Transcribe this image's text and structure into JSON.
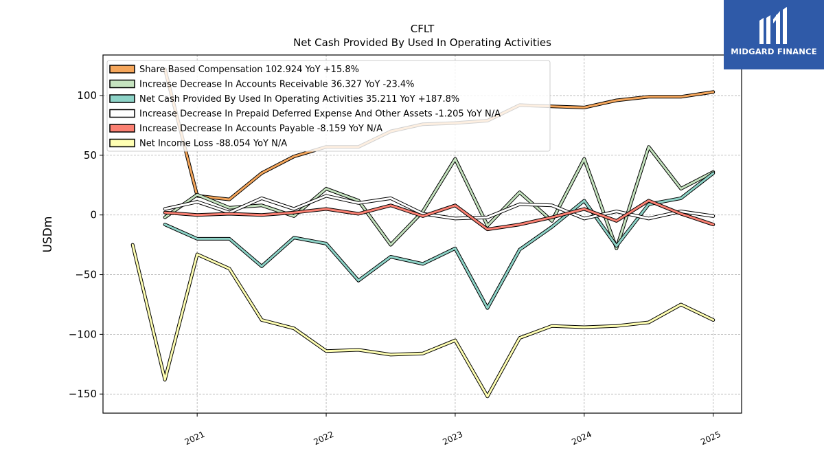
{
  "brand": {
    "name": "MIDGARD FINANCE",
    "logo_icon": "midgard-logo-icon",
    "background": "#2f5aa8"
  },
  "chart_data": {
    "type": "line",
    "title": "CFLT",
    "subtitle": "Net Cash Provided By Used In Operating Activities",
    "xlabel": "",
    "ylabel": "USDm",
    "xlim": [
      2020.27,
      2025.22
    ],
    "ylim": [
      -166,
      134
    ],
    "x_ticks": [
      2021,
      2022,
      2023,
      2024,
      2025
    ],
    "y_ticks": [
      100,
      50,
      0,
      -50,
      -100,
      -150
    ],
    "y_tick_labels": [
      "100",
      "50",
      "0",
      "−50",
      "−100",
      "−150"
    ],
    "grid": true,
    "legend_position": "top-left",
    "x": [
      2020.5,
      2020.75,
      2021.0,
      2021.25,
      2021.5,
      2021.75,
      2022.0,
      2022.25,
      2022.5,
      2022.75,
      2023.0,
      2023.25,
      2023.5,
      2023.75,
      2024.0,
      2024.25,
      2024.5,
      2024.75,
      2025.0
    ],
    "series": [
      {
        "name": "Share Based Compensation",
        "legend_label": "Share Based Compensation  102.924 YoY +15.8%",
        "color": "#f5a65b",
        "values": [
          null,
          122,
          16,
          13,
          35,
          49,
          57,
          57,
          70,
          76,
          77,
          79,
          92,
          91,
          90,
          96,
          99,
          99,
          103
        ]
      },
      {
        "name": "Increase Decrease In Accounts Receivable",
        "legend_label": "Increase Decrease In Accounts Receivable  36.327 YoY -23.4%",
        "color": "#c5e3bf",
        "values": [
          null,
          -2,
          17,
          6,
          8,
          -1,
          22,
          12,
          -25,
          3,
          47,
          -9,
          19,
          -5,
          47,
          -28,
          57,
          22,
          36
        ]
      },
      {
        "name": "Net Cash Provided By Used In Operating Activities",
        "legend_label": "Net Cash Provided By Used In Operating Activities  35.211 YoY +187.8%",
        "color": "#8dd3c7",
        "values": [
          null,
          -8,
          -20,
          -20,
          -43,
          -19,
          -24,
          -55,
          -35,
          -41,
          -28,
          -78,
          -29,
          -10,
          12,
          -26,
          9,
          14,
          35
        ]
      },
      {
        "name": "Increase Decrease In Prepaid Deferred Expense And Other Assets",
        "legend_label": "Increase Decrease In Prepaid Deferred Expense And Other Assets  -1.205 YoY N/A",
        "color": "#ffffff",
        "values": [
          null,
          5,
          11,
          2,
          14,
          5,
          16,
          10,
          14,
          1,
          -3,
          -2,
          9,
          8,
          -3,
          3,
          -3,
          3,
          -1
        ]
      },
      {
        "name": "Increase Decrease In Accounts Payable",
        "legend_label": "Increase Decrease In Accounts Payable  -8.159 YoY N/A",
        "color": "#fb8072",
        "values": [
          null,
          2,
          0,
          1,
          0,
          2,
          5,
          1,
          8,
          -1,
          8,
          -12,
          -8,
          -2,
          5,
          -5,
          12,
          1,
          -8
        ]
      },
      {
        "name": "Net Income Loss",
        "legend_label": "Net Income Loss  -88.054 YoY N/A",
        "color": "#ffffb3",
        "values": [
          -25,
          -138,
          -33,
          -45,
          -88,
          -95,
          -114,
          -113,
          -117,
          -116,
          -105,
          -152,
          -103,
          -93,
          -94,
          -93,
          -90,
          -75,
          -88
        ]
      }
    ]
  }
}
